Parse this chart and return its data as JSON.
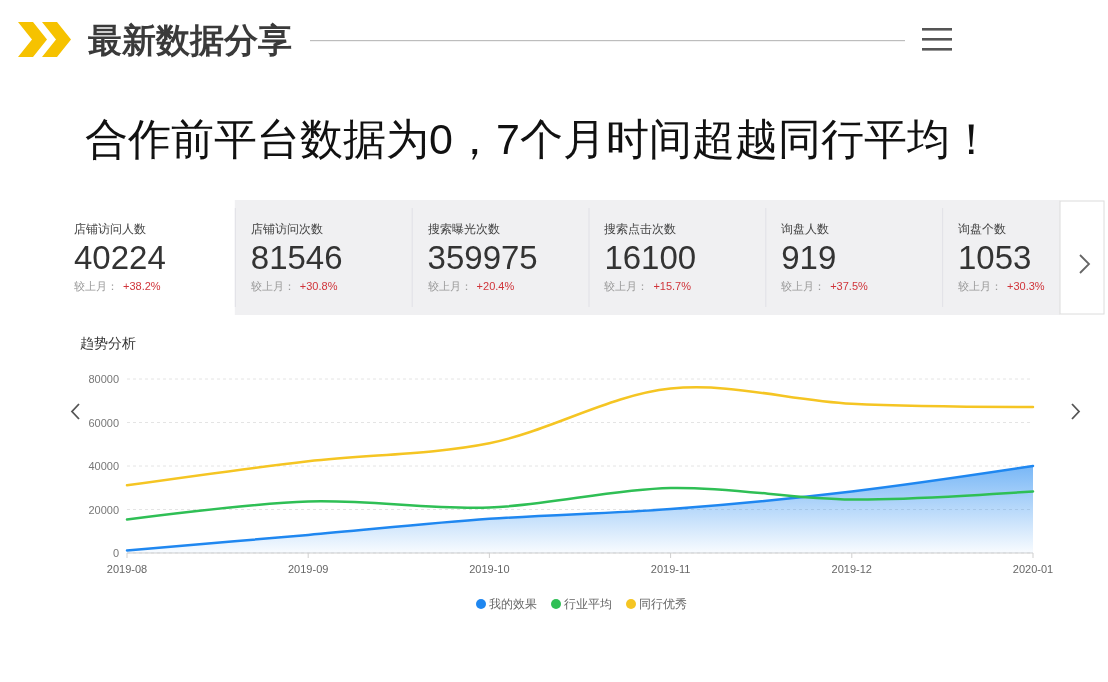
{
  "chart_data": [
    {
      "type": "other",
      "title": "最新数据分享",
      "subtitle": "合作前平台数据为0，7个月时间超越同行平均！",
      "annotations": [
        "店铺访问人数",
        "40224",
        "较上月：",
        "+38.2%",
        "店铺访问次数",
        "81546",
        "较上月：",
        "+30.8%",
        "搜索曝光次数",
        "359975",
        "较上月：",
        "+20.4%",
        "搜索点击次数",
        "16100",
        "较上月：",
        "+15.7%",
        "询盘人数",
        "919",
        "较上月：",
        "+37.5%",
        "询盘个数",
        "1053",
        "较上月：",
        "+30.3%"
      ]
    },
    {
      "type": "line",
      "title": "趋势分析",
      "categories": [
        "2019-08",
        "2019-09",
        "2019-10",
        "2019-11",
        "2019-12",
        "2020-01"
      ],
      "series": [
        {
          "name": "我的效果",
          "type": "area",
          "color": "#1f87f0",
          "values": [
            1200,
            8300,
            15700,
            20200,
            28300,
            40000
          ]
        },
        {
          "name": "行业平均",
          "color": "#2fbf55",
          "values": [
            15400,
            23700,
            20900,
            29900,
            24600,
            28300
          ]
        },
        {
          "name": "同行优秀",
          "color": "#f5c523",
          "values": [
            31100,
            42200,
            50500,
            75600,
            68600,
            67100
          ]
        }
      ],
      "ylim": [
        0,
        80000
      ],
      "yticks": [
        0,
        20000,
        40000,
        60000,
        80000
      ],
      "grid": "y",
      "legend": "bottom"
    }
  ]
}
